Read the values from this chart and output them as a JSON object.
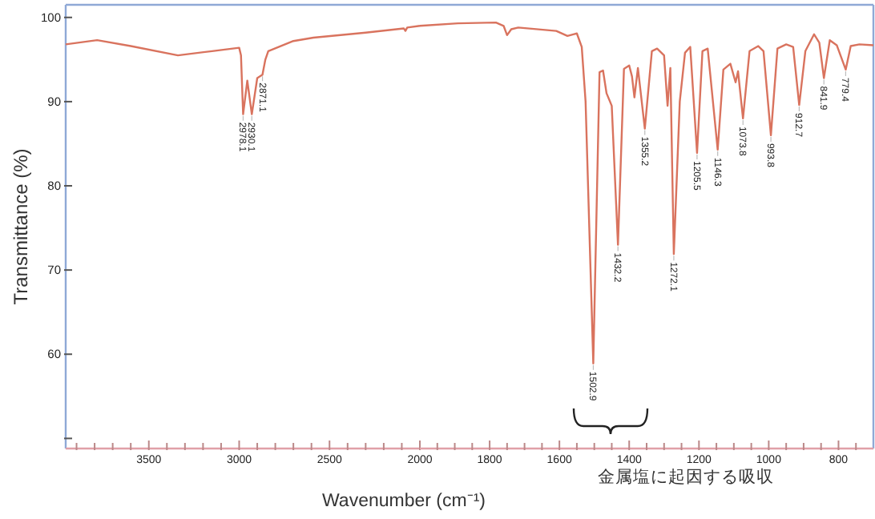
{
  "chart_data": [
    {
      "type": "line",
      "xlabel": "Wavenumber (cm⁻¹)",
      "ylabel": "Transmittance (%)",
      "xlim": [
        3960,
        2000
      ],
      "ylim": [
        48.8,
        101.5
      ],
      "xticks": [
        3500,
        3000,
        2500,
        2000,
        {
          "value": 3900,
          "label": null
        },
        {
          "value": 3800,
          "label": null
        },
        {
          "value": 3700,
          "label": null
        },
        {
          "value": 3600,
          "label": null
        },
        {
          "value": 3400,
          "label": null
        },
        {
          "value": 3300,
          "label": null
        },
        {
          "value": 3200,
          "label": null
        },
        {
          "value": 3100,
          "label": null
        },
        {
          "value": 2900,
          "label": null
        },
        {
          "value": 2800,
          "label": null
        },
        {
          "value": 2700,
          "label": null
        },
        {
          "value": 2600,
          "label": null
        },
        {
          "value": 2400,
          "label": null
        },
        {
          "value": 2300,
          "label": null
        },
        {
          "value": 2200,
          "label": null
        },
        {
          "value": 2100,
          "label": null
        }
      ],
      "yticks": [
        100,
        90,
        80,
        70,
        60,
        {
          "value": 50,
          "label": null
        }
      ],
      "grid": false,
      "marker": "none",
      "line_style": "solid",
      "series": [
        {
          "color": "#d9735e",
          "x": [
            3960,
            3786,
            3600,
            3339,
            3150,
            3000,
            2990,
            2978.1,
            2955,
            2930.1,
            2900,
            2871.1,
            2855,
            2839,
            2700,
            2589,
            2300,
            2089,
            2080,
            2070,
            2000
          ],
          "values": [
            96.8,
            97.3,
            96.6,
            95.5,
            96.0,
            96.4,
            95.5,
            88.5,
            92.5,
            88.5,
            92.8,
            93.2,
            95.0,
            96.0,
            97.2,
            97.6,
            98.2,
            98.7,
            98.4,
            98.8,
            99.0
          ]
        }
      ],
      "annotations": [
        {
          "text": "2978.1",
          "x": 2978.1,
          "y": 88.5
        },
        {
          "text": "2930.1",
          "x": 2930.1,
          "y": 88.5
        },
        {
          "text": "2871.1",
          "x": 2871.1,
          "y": 93.2
        }
      ]
    },
    {
      "type": "line",
      "xlim": [
        2000,
        700
      ],
      "ylim": [
        48.8,
        101.5
      ],
      "tick_labels": "x",
      "xticks": [
        1800,
        1600,
        1400,
        1200,
        1000,
        800,
        {
          "value": 1950,
          "label": null
        },
        {
          "value": 1900,
          "label": null
        },
        {
          "value": 1850,
          "label": null
        },
        {
          "value": 1750,
          "label": null
        },
        {
          "value": 1700,
          "label": null
        },
        {
          "value": 1650,
          "label": null
        },
        {
          "value": 1550,
          "label": null
        },
        {
          "value": 1500,
          "label": null
        },
        {
          "value": 1450,
          "label": null
        },
        {
          "value": 1350,
          "label": null
        },
        {
          "value": 1300,
          "label": null
        },
        {
          "value": 1250,
          "label": null
        },
        {
          "value": 1150,
          "label": null
        },
        {
          "value": 1100,
          "label": null
        },
        {
          "value": 1050,
          "label": null
        },
        {
          "value": 950,
          "label": null
        },
        {
          "value": 900,
          "label": null
        },
        {
          "value": 850,
          "label": null
        },
        {
          "value": 750,
          "label": null
        }
      ],
      "grid": false,
      "marker": "none",
      "line_style": "solid",
      "series": [
        {
          "color": "#d9735e",
          "x": [
            2000,
            1891,
            1782,
            1760,
            1750,
            1738,
            1718,
            1609,
            1577,
            1560,
            1550,
            1536,
            1525,
            1502.9,
            1485,
            1475,
            1465,
            1450,
            1432.2,
            1415,
            1400,
            1392,
            1385,
            1375,
            1355.2,
            1335,
            1320,
            1300,
            1290,
            1282,
            1272.1,
            1255,
            1240,
            1225,
            1205.5,
            1190,
            1175,
            1146.3,
            1130,
            1110,
            1095,
            1088,
            1073.8,
            1055,
            1030,
            1015,
            993.8,
            975,
            950,
            930,
            912.7,
            895,
            870,
            855,
            841.9,
            825,
            805,
            779.4,
            765,
            740,
            700
          ],
          "values": [
            99.0,
            99.3,
            99.4,
            99.0,
            97.9,
            98.6,
            98.8,
            98.4,
            97.8,
            98.0,
            98.1,
            96.5,
            90.0,
            58.9,
            93.5,
            93.7,
            91.0,
            89.5,
            73.0,
            93.9,
            94.3,
            93.0,
            90.5,
            94.0,
            86.8,
            96.0,
            96.3,
            95.5,
            89.5,
            94.0,
            71.9,
            90.0,
            95.8,
            96.5,
            83.9,
            96.0,
            96.3,
            84.3,
            93.8,
            94.5,
            92.3,
            93.6,
            88.0,
            96.0,
            96.6,
            96.0,
            86.0,
            96.3,
            96.8,
            96.5,
            89.6,
            96.0,
            98.0,
            97.0,
            92.8,
            97.3,
            96.7,
            93.8,
            96.6,
            96.8,
            96.7
          ]
        }
      ],
      "annotations": [
        {
          "text": "1502.9",
          "x": 1502.9,
          "y": 58.9
        },
        {
          "text": "1432.2",
          "x": 1432.2,
          "y": 73.0
        },
        {
          "text": "1355.2",
          "x": 1355.2,
          "y": 86.8
        },
        {
          "text": "1272.1",
          "x": 1272.1,
          "y": 71.9
        },
        {
          "text": "1205.5",
          "x": 1205.5,
          "y": 83.9
        },
        {
          "text": "1146.3",
          "x": 1146.3,
          "y": 84.3
        },
        {
          "text": "1073.8",
          "x": 1073.8,
          "y": 88.0
        },
        {
          "text": "993.8",
          "x": 993.8,
          "y": 86.0
        },
        {
          "text": "912.7",
          "x": 912.7,
          "y": 89.6
        },
        {
          "text": "841.9",
          "x": 841.9,
          "y": 92.8
        },
        {
          "text": "779.4",
          "x": 779.4,
          "y": 93.8
        },
        "金属塩に起因する吸収"
      ]
    }
  ]
}
